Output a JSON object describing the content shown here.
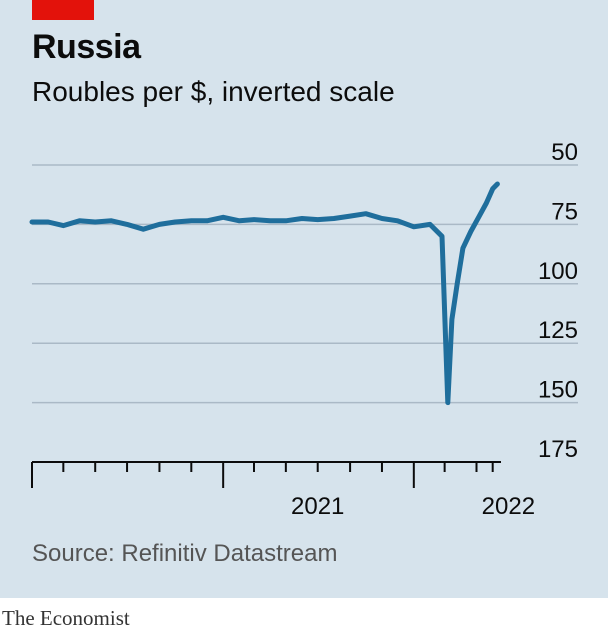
{
  "header": {
    "title": "Russia",
    "subtitle": "Roubles per $, inverted scale",
    "accent_color": "#e3120b"
  },
  "footer": {
    "source": "Source: Refinitiv Datastream",
    "brand": "The Economist"
  },
  "colors": {
    "background": "#d6e3ec",
    "line": "#1f6e9c",
    "grid": "#aab9c6",
    "axis": "#0c0c0c"
  },
  "chart_data": {
    "type": "line",
    "title": "Russia",
    "subtitle": "Roubles per $, inverted scale",
    "ylabel": "Roubles per $",
    "y_inverted": true,
    "ylim": [
      50,
      175
    ],
    "y_ticks": [
      50,
      75,
      100,
      125,
      150,
      175
    ],
    "x_ticks": [
      "2021",
      "2022"
    ],
    "x_range": [
      "2020-01",
      "2022-06"
    ],
    "grid": true,
    "series": [
      {
        "values": [
          {
            "x": "2020-01-01",
            "y": 74
          },
          {
            "x": "2020-02-01",
            "y": 74
          },
          {
            "x": "2020-03-01",
            "y": 75.5
          },
          {
            "x": "2020-04-01",
            "y": 73.5
          },
          {
            "x": "2020-05-01",
            "y": 74
          },
          {
            "x": "2020-06-01",
            "y": 73.5
          },
          {
            "x": "2020-07-01",
            "y": 75
          },
          {
            "x": "2020-08-01",
            "y": 77
          },
          {
            "x": "2020-09-01",
            "y": 75
          },
          {
            "x": "2020-10-01",
            "y": 74
          },
          {
            "x": "2020-11-01",
            "y": 73.5
          },
          {
            "x": "2020-12-01",
            "y": 73.5
          },
          {
            "x": "2021-01-01",
            "y": 72
          },
          {
            "x": "2021-02-01",
            "y": 73.5
          },
          {
            "x": "2021-03-01",
            "y": 73
          },
          {
            "x": "2021-04-01",
            "y": 73.5
          },
          {
            "x": "2021-05-01",
            "y": 73.5
          },
          {
            "x": "2021-06-01",
            "y": 72.5
          },
          {
            "x": "2021-07-01",
            "y": 73
          },
          {
            "x": "2021-08-01",
            "y": 72.5
          },
          {
            "x": "2021-09-01",
            "y": 71.5
          },
          {
            "x": "2021-10-01",
            "y": 70.5
          },
          {
            "x": "2021-11-01",
            "y": 72.5
          },
          {
            "x": "2021-12-01",
            "y": 73.5
          },
          {
            "x": "2022-01-01",
            "y": 76
          },
          {
            "x": "2022-02-01",
            "y": 75
          },
          {
            "x": "2022-02-24",
            "y": 80
          },
          {
            "x": "2022-03-07",
            "y": 150
          },
          {
            "x": "2022-03-15",
            "y": 115
          },
          {
            "x": "2022-03-25",
            "y": 100
          },
          {
            "x": "2022-04-05",
            "y": 85
          },
          {
            "x": "2022-04-20",
            "y": 78
          },
          {
            "x": "2022-05-05",
            "y": 72
          },
          {
            "x": "2022-05-20",
            "y": 66
          },
          {
            "x": "2022-06-01",
            "y": 60
          },
          {
            "x": "2022-06-10",
            "y": 58
          }
        ]
      }
    ]
  }
}
